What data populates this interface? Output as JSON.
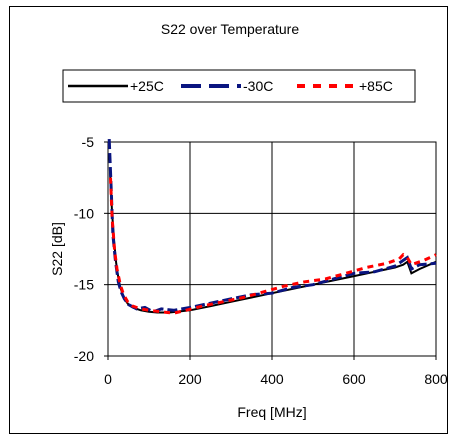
{
  "chart_data": {
    "type": "line",
    "title": "S22 over Temperature",
    "xlabel": "Freq [MHz]",
    "ylabel": "S22 [dB]",
    "xlim": [
      0,
      800
    ],
    "ylim": [
      -20,
      -5
    ],
    "xticks": [
      0,
      200,
      400,
      600,
      800
    ],
    "yticks": [
      -5,
      -10,
      -15,
      -20
    ],
    "grid": true,
    "legend_position": "top",
    "series": [
      {
        "name": "+25C",
        "color": "#000000",
        "style": "solid",
        "x": [
          5,
          10,
          15,
          20,
          25,
          30,
          40,
          50,
          60,
          80,
          100,
          120,
          150,
          200,
          250,
          300,
          350,
          400,
          450,
          500,
          550,
          600,
          650,
          700,
          720,
          730,
          740,
          760,
          800
        ],
        "y": [
          -7.0,
          -10.0,
          -12.0,
          -13.5,
          -14.5,
          -15.2,
          -16.0,
          -16.4,
          -16.6,
          -16.8,
          -16.9,
          -16.95,
          -16.95,
          -16.8,
          -16.5,
          -16.2,
          -15.9,
          -15.6,
          -15.3,
          -15.0,
          -14.7,
          -14.4,
          -14.1,
          -13.8,
          -13.6,
          -13.4,
          -14.2,
          -13.9,
          -13.4
        ]
      },
      {
        "name": "-30C",
        "color": "#0a1580",
        "style": "dashed",
        "x": [
          3,
          8,
          12,
          18,
          25,
          32,
          40,
          50,
          70,
          90,
          110,
          130,
          160,
          200,
          250,
          300,
          350,
          400,
          450,
          500,
          550,
          600,
          650,
          700,
          720,
          730,
          740,
          760,
          800
        ],
        "y": [
          -4.8,
          -8.5,
          -11.5,
          -13.3,
          -14.8,
          -15.5,
          -16.0,
          -16.4,
          -16.7,
          -16.6,
          -16.9,
          -16.7,
          -16.8,
          -16.6,
          -16.3,
          -16.0,
          -15.7,
          -15.6,
          -15.2,
          -15.0,
          -14.6,
          -14.2,
          -14.1,
          -13.7,
          -13.3,
          -13.1,
          -13.9,
          -13.6,
          -13.5
        ]
      },
      {
        "name": "+85C",
        "color": "#ff0000",
        "style": "dashed",
        "x": [
          6,
          10,
          16,
          22,
          30,
          38,
          48,
          60,
          80,
          100,
          130,
          160,
          190,
          230,
          280,
          330,
          380,
          430,
          480,
          530,
          580,
          630,
          680,
          710,
          720,
          730,
          740,
          770,
          800
        ],
        "y": [
          -7.5,
          -10.3,
          -12.6,
          -13.9,
          -15.0,
          -15.7,
          -16.2,
          -16.5,
          -16.7,
          -16.8,
          -16.9,
          -17.0,
          -16.8,
          -16.5,
          -16.2,
          -15.9,
          -15.5,
          -15.1,
          -14.8,
          -14.6,
          -14.2,
          -13.8,
          -13.5,
          -13.2,
          -12.9,
          -13.1,
          -13.6,
          -13.3,
          -12.9
        ]
      }
    ]
  }
}
